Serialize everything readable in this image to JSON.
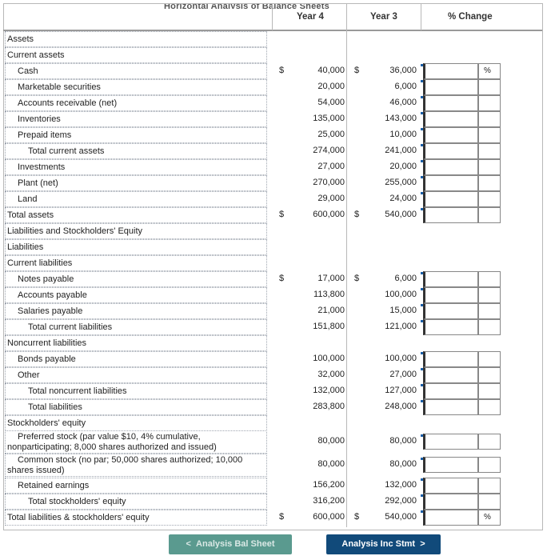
{
  "title_fragment": "Horizontal Analysis of Balance Sheets",
  "headers": {
    "year4": "Year 4",
    "year3": "Year 3",
    "change": "% Change"
  },
  "rows": [
    {
      "label": "Assets",
      "indent": 0
    },
    {
      "label": "Current assets",
      "indent": 0
    },
    {
      "label": "Cash",
      "indent": 1,
      "cur4": "$",
      "y4": "40,000",
      "cur3": "$",
      "y3": "36,000",
      "pct": "%"
    },
    {
      "label": "Marketable securities",
      "indent": 1,
      "y4": "20,000",
      "y3": "6,000"
    },
    {
      "label": "Accounts receivable (net)",
      "indent": 1,
      "y4": "54,000",
      "y3": "46,000"
    },
    {
      "label": "Inventories",
      "indent": 1,
      "y4": "135,000",
      "y3": "143,000"
    },
    {
      "label": "Prepaid items",
      "indent": 1,
      "y4": "25,000",
      "y3": "10,000"
    },
    {
      "label": "Total current assets",
      "indent": 2,
      "y4": "274,000",
      "y3": "241,000"
    },
    {
      "label": "Investments",
      "indent": 1,
      "y4": "27,000",
      "y3": "20,000"
    },
    {
      "label": "Plant (net)",
      "indent": 1,
      "y4": "270,000",
      "y3": "255,000"
    },
    {
      "label": "Land",
      "indent": 1,
      "y4": "29,000",
      "y3": "24,000"
    },
    {
      "label": "Total assets",
      "indent": 0,
      "cur4": "$",
      "y4": "600,000",
      "cur3": "$",
      "y3": "540,000"
    },
    {
      "label": "Liabilities and Stockholders' Equity",
      "indent": 0
    },
    {
      "label": "Liabilities",
      "indent": 0
    },
    {
      "label": "Current liabilities",
      "indent": 0
    },
    {
      "label": "Notes payable",
      "indent": 1,
      "cur4": "$",
      "y4": "17,000",
      "cur3": "$",
      "y3": "6,000"
    },
    {
      "label": "Accounts payable",
      "indent": 1,
      "y4": "113,800",
      "y3": "100,000"
    },
    {
      "label": "Salaries payable",
      "indent": 1,
      "y4": "21,000",
      "y3": "15,000"
    },
    {
      "label": "Total current liabilities",
      "indent": 2,
      "y4": "151,800",
      "y3": "121,000"
    },
    {
      "label": "Noncurrent liabilities",
      "indent": 0
    },
    {
      "label": "Bonds payable",
      "indent": 1,
      "y4": "100,000",
      "y3": "100,000"
    },
    {
      "label": "Other",
      "indent": 1,
      "y4": "32,000",
      "y3": "27,000"
    },
    {
      "label": "Total noncurrent liabilities",
      "indent": 2,
      "y4": "132,000",
      "y3": "127,000"
    },
    {
      "label": "Total liabilities",
      "indent": 2,
      "y4": "283,800",
      "y3": "248,000"
    },
    {
      "label": "Stockholders' equity",
      "indent": 0
    },
    {
      "label": "Preferred stock (par value $10, 4% cumulative, nonparticipating; 8,000 shares authorized and issued)",
      "indent": 1,
      "tall": true,
      "y4": "80,000",
      "y3": "80,000"
    },
    {
      "label": "Common stock (no par; 50,000 shares authorized; 10,000 shares issued)",
      "indent": 1,
      "tall": true,
      "y4": "80,000",
      "y3": "80,000"
    },
    {
      "label": "Retained earnings",
      "indent": 1,
      "y4": "156,200",
      "y3": "132,000"
    },
    {
      "label": "Total stockholders' equity",
      "indent": 2,
      "y4": "316,200",
      "y3": "292,000"
    },
    {
      "label": "Total liabilities & stockholders' equity",
      "indent": 0,
      "cur4": "$",
      "y4": "600,000",
      "cur3": "$",
      "y3": "540,000",
      "pct": "%"
    }
  ],
  "nav": {
    "prev_label": "Analysis Bal Sheet",
    "next_label": "Analysis Inc Stmt"
  },
  "colors": {
    "prev_button": "#5a9a8f",
    "next_button": "#114a7a",
    "input_flag": "#1b5fa8"
  }
}
